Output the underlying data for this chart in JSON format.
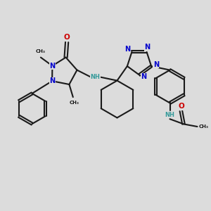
{
  "bg": "#dcdcdc",
  "bc": "#1a1a1a",
  "Nc": "#0000cc",
  "Oc": "#cc0000",
  "NHc": "#339999",
  "lw": 1.5,
  "fs": 7.0,
  "figsize": [
    3.0,
    3.0
  ],
  "dpi": 100,
  "xlim": [
    0,
    10
  ],
  "ylim": [
    0,
    10
  ]
}
